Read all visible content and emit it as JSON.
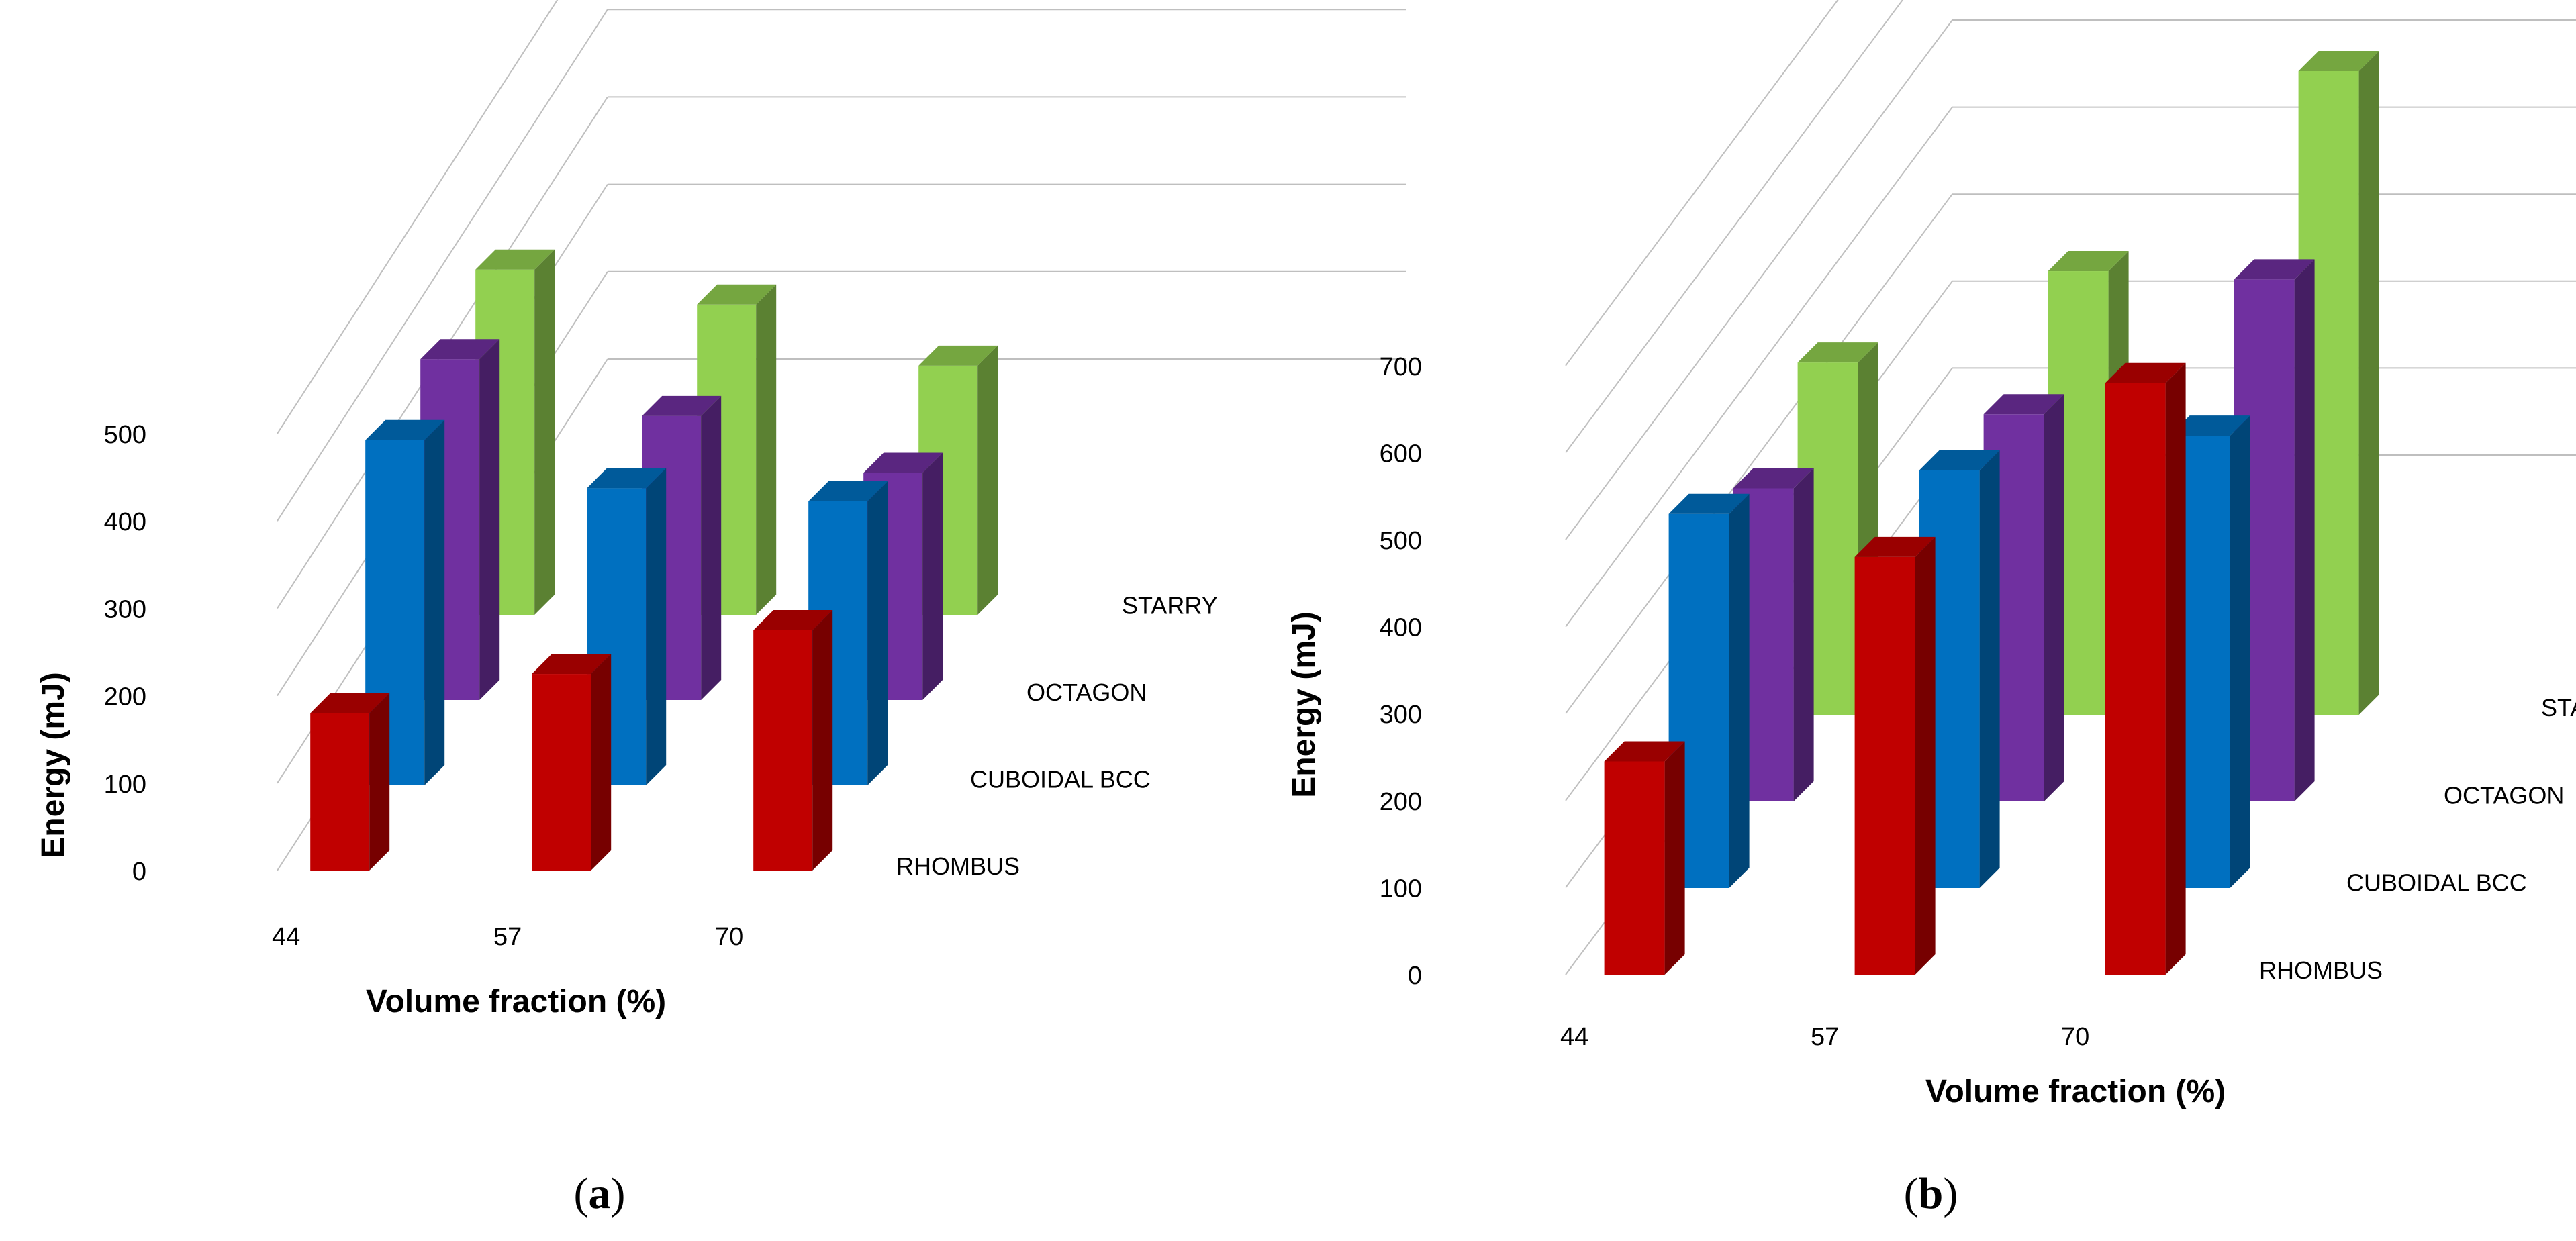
{
  "chart_data": [
    {
      "panel_label": "(a)",
      "type": "bar",
      "subtype": "3d-column",
      "title": "",
      "xlabel": "Volume fraction (%)",
      "ylabel": "Energy (mJ)",
      "categories": [
        "44",
        "57",
        "70"
      ],
      "ylim": [
        0,
        500
      ],
      "yticks": [
        0,
        100,
        200,
        300,
        400,
        500
      ],
      "series": [
        {
          "name": "RHOMBUS",
          "values": [
            180,
            225,
            275
          ]
        },
        {
          "name": "CUBOIDAL BCC",
          "values": [
            395,
            340,
            325
          ]
        },
        {
          "name": "OCTAGON",
          "values": [
            390,
            325,
            260
          ]
        },
        {
          "name": "STARRY",
          "values": [
            395,
            355,
            285
          ]
        }
      ],
      "colors": [
        "#c00000",
        "#0070c0",
        "#7030a0",
        "#92d050"
      ]
    },
    {
      "panel_label": "(b)",
      "type": "bar",
      "subtype": "3d-column",
      "title": "",
      "xlabel": "Volume fraction (%)",
      "ylabel": "Energy (mJ)",
      "categories": [
        "44",
        "57",
        "70"
      ],
      "ylim": [
        0,
        700
      ],
      "yticks": [
        0,
        100,
        200,
        300,
        400,
        500,
        600,
        700
      ],
      "series": [
        {
          "name": "RHOMBUS",
          "values": [
            245,
            480,
            680
          ]
        },
        {
          "name": "CUBOIDAL BCC",
          "values": [
            430,
            480,
            520
          ]
        },
        {
          "name": "OCTAGON",
          "values": [
            360,
            445,
            600
          ]
        },
        {
          "name": "STARRY",
          "values": [
            405,
            510,
            740
          ]
        }
      ],
      "colors": [
        "#c00000",
        "#0070c0",
        "#7030a0",
        "#92d050"
      ]
    }
  ]
}
